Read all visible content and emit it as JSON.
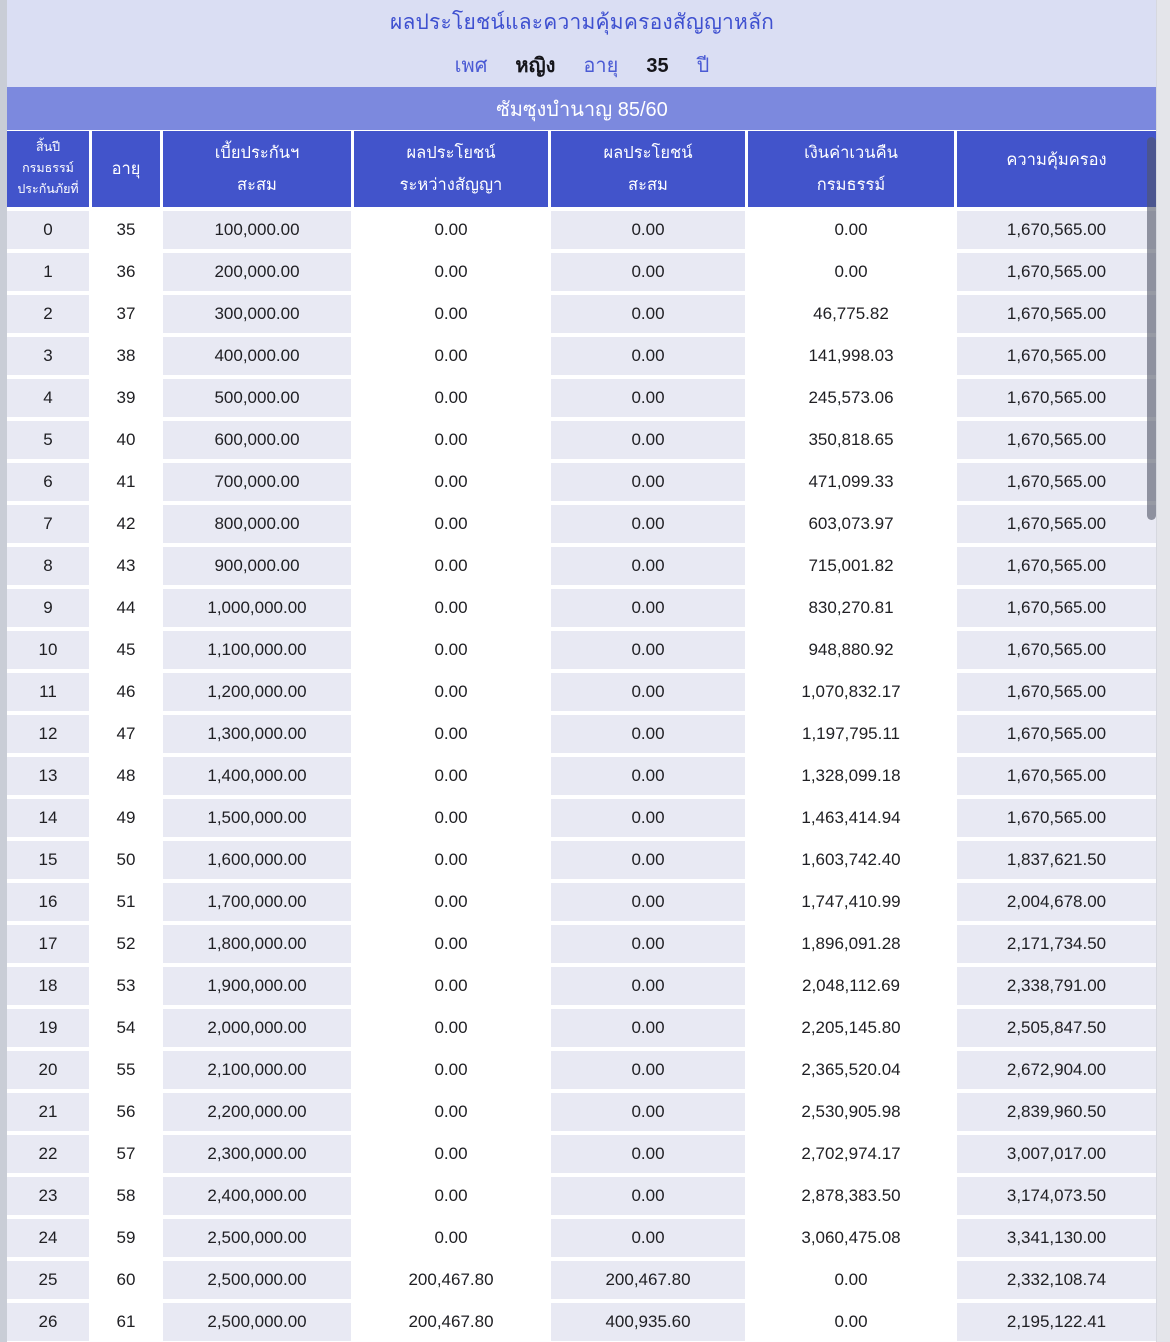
{
  "header": {
    "title": "ผลประโยชน์และความคุ้มครองสัญญาหลัก",
    "gender_label": "เพศ",
    "gender_value": "หญิง",
    "age_label": "อายุ",
    "age_value": "35",
    "age_unit": "ปี"
  },
  "plan": {
    "banner": "ซัมซุงบำนาญ 85/60"
  },
  "table": {
    "columns": [
      {
        "id": "policy-year-end",
        "lines": [
          "สิ้นปี",
          "กรมธรรม์",
          "ประกันภัยที่"
        ]
      },
      {
        "id": "age",
        "lines": [
          "อายุ"
        ]
      },
      {
        "id": "accumulated-premium",
        "lines": [
          "เบี้ยประกันฯ",
          "สะสม"
        ]
      },
      {
        "id": "benefit-during-contract",
        "lines": [
          "ผลประโยชน์",
          "ระหว่างสัญญา"
        ]
      },
      {
        "id": "accumulated-benefit",
        "lines": [
          "ผลประโยชน์",
          "สะสม"
        ]
      },
      {
        "id": "surrender-value",
        "lines": [
          "เงินค่าเวนคืน",
          "กรมธรรม์"
        ]
      },
      {
        "id": "coverage",
        "lines": [
          "ความคุ้มครอง"
        ]
      }
    ],
    "rows": [
      [
        "0",
        "35",
        "100,000.00",
        "0.00",
        "0.00",
        "0.00",
        "1,670,565.00"
      ],
      [
        "1",
        "36",
        "200,000.00",
        "0.00",
        "0.00",
        "0.00",
        "1,670,565.00"
      ],
      [
        "2",
        "37",
        "300,000.00",
        "0.00",
        "0.00",
        "46,775.82",
        "1,670,565.00"
      ],
      [
        "3",
        "38",
        "400,000.00",
        "0.00",
        "0.00",
        "141,998.03",
        "1,670,565.00"
      ],
      [
        "4",
        "39",
        "500,000.00",
        "0.00",
        "0.00",
        "245,573.06",
        "1,670,565.00"
      ],
      [
        "5",
        "40",
        "600,000.00",
        "0.00",
        "0.00",
        "350,818.65",
        "1,670,565.00"
      ],
      [
        "6",
        "41",
        "700,000.00",
        "0.00",
        "0.00",
        "471,099.33",
        "1,670,565.00"
      ],
      [
        "7",
        "42",
        "800,000.00",
        "0.00",
        "0.00",
        "603,073.97",
        "1,670,565.00"
      ],
      [
        "8",
        "43",
        "900,000.00",
        "0.00",
        "0.00",
        "715,001.82",
        "1,670,565.00"
      ],
      [
        "9",
        "44",
        "1,000,000.00",
        "0.00",
        "0.00",
        "830,270.81",
        "1,670,565.00"
      ],
      [
        "10",
        "45",
        "1,100,000.00",
        "0.00",
        "0.00",
        "948,880.92",
        "1,670,565.00"
      ],
      [
        "11",
        "46",
        "1,200,000.00",
        "0.00",
        "0.00",
        "1,070,832.17",
        "1,670,565.00"
      ],
      [
        "12",
        "47",
        "1,300,000.00",
        "0.00",
        "0.00",
        "1,197,795.11",
        "1,670,565.00"
      ],
      [
        "13",
        "48",
        "1,400,000.00",
        "0.00",
        "0.00",
        "1,328,099.18",
        "1,670,565.00"
      ],
      [
        "14",
        "49",
        "1,500,000.00",
        "0.00",
        "0.00",
        "1,463,414.94",
        "1,670,565.00"
      ],
      [
        "15",
        "50",
        "1,600,000.00",
        "0.00",
        "0.00",
        "1,603,742.40",
        "1,837,621.50"
      ],
      [
        "16",
        "51",
        "1,700,000.00",
        "0.00",
        "0.00",
        "1,747,410.99",
        "2,004,678.00"
      ],
      [
        "17",
        "52",
        "1,800,000.00",
        "0.00",
        "0.00",
        "1,896,091.28",
        "2,171,734.50"
      ],
      [
        "18",
        "53",
        "1,900,000.00",
        "0.00",
        "0.00",
        "2,048,112.69",
        "2,338,791.00"
      ],
      [
        "19",
        "54",
        "2,000,000.00",
        "0.00",
        "0.00",
        "2,205,145.80",
        "2,505,847.50"
      ],
      [
        "20",
        "55",
        "2,100,000.00",
        "0.00",
        "0.00",
        "2,365,520.04",
        "2,672,904.00"
      ],
      [
        "21",
        "56",
        "2,200,000.00",
        "0.00",
        "0.00",
        "2,530,905.98",
        "2,839,960.50"
      ],
      [
        "22",
        "57",
        "2,300,000.00",
        "0.00",
        "0.00",
        "2,702,974.17",
        "3,007,017.00"
      ],
      [
        "23",
        "58",
        "2,400,000.00",
        "0.00",
        "0.00",
        "2,878,383.50",
        "3,174,073.50"
      ],
      [
        "24",
        "59",
        "2,500,000.00",
        "0.00",
        "0.00",
        "3,060,475.08",
        "3,341,130.00"
      ],
      [
        "25",
        "60",
        "2,500,000.00",
        "200,467.80",
        "200,467.80",
        "0.00",
        "2,332,108.74"
      ],
      [
        "26",
        "61",
        "2,500,000.00",
        "200,467.80",
        "400,935.60",
        "0.00",
        "2,195,122.41"
      ]
    ]
  },
  "colors": {
    "title_bg": "#dadef3",
    "title_text": "#3e50d0",
    "banner_bg": "#7c89de",
    "banner_text": "#ffffff",
    "header_cell_bg": "#4254cb",
    "header_cell_text": "#ffffff",
    "cell_shade_bg": "#e8e9f3",
    "cell_text": "#202024",
    "edge_left": "#c9cdd6",
    "edge_right": "#e4e5ea"
  }
}
